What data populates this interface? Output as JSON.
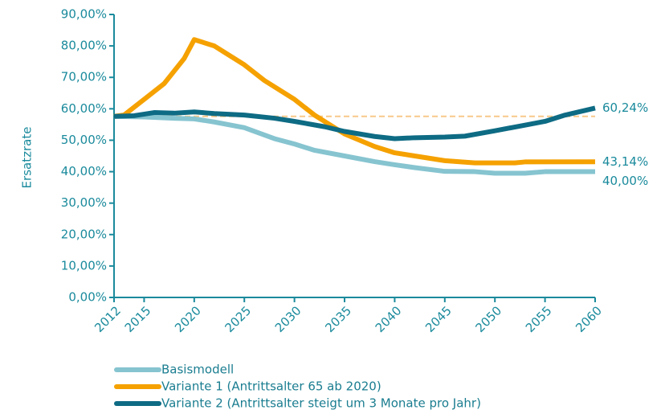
{
  "chart_data": {
    "type": "line",
    "y_label": "Ersatzrate",
    "xlim": [
      2012,
      2060
    ],
    "xticks": [
      2012,
      2015,
      2020,
      2025,
      2030,
      2035,
      2040,
      2045,
      2050,
      2055,
      2060
    ],
    "ylim": [
      0,
      90
    ],
    "yticks": [
      {
        "value": 0,
        "label": "0,00%"
      },
      {
        "value": 10,
        "label": "10,00%"
      },
      {
        "value": 20,
        "label": "20,00%"
      },
      {
        "value": 30,
        "label": "30,00%"
      },
      {
        "value": 40,
        "label": "40,00%"
      },
      {
        "value": 50,
        "label": "50,00%"
      },
      {
        "value": 60,
        "label": "60,00%"
      },
      {
        "value": 70,
        "label": "70,00%"
      },
      {
        "value": 80,
        "label": "80,00%"
      },
      {
        "value": 90,
        "label": "90,00%"
      }
    ],
    "reference_line": {
      "value": 57.6,
      "color": "#f8c98a"
    },
    "series": [
      {
        "name": "Basismodell",
        "color": "#86c4d0",
        "x": [
          2012,
          2015,
          2018,
          2020,
          2022,
          2025,
          2028,
          2030,
          2032,
          2035,
          2038,
          2040,
          2042,
          2045,
          2048,
          2050,
          2053,
          2055,
          2060
        ],
        "values": [
          57.6,
          57.4,
          57,
          56.8,
          55.8,
          54,
          50.5,
          48.8,
          46.8,
          45,
          43.2,
          42.2,
          41.3,
          40.1,
          40,
          39.5,
          39.5,
          40,
          40.0
        ],
        "value_labels": [
          null,
          null,
          null,
          null,
          null,
          null,
          null,
          null,
          null,
          null,
          null,
          null,
          null,
          null,
          null,
          null,
          null,
          null,
          "40,00%"
        ]
      },
      {
        "name": "Variante 1 (Antrittsalter 65 ab 2020)",
        "color": "#f5a100",
        "x": [
          2012,
          2013,
          2015,
          2017,
          2019,
          2020,
          2022,
          2023,
          2025,
          2027,
          2030,
          2032,
          2035,
          2038,
          2040,
          2042,
          2045,
          2048,
          2052,
          2053,
          2060
        ],
        "values": [
          57.6,
          58,
          63,
          68,
          76,
          82,
          80,
          78,
          74,
          69,
          63,
          58,
          52,
          48,
          46,
          45,
          43.5,
          42.8,
          42.8,
          43.1,
          43.14
        ],
        "value_labels": [
          null,
          null,
          null,
          null,
          null,
          null,
          null,
          null,
          null,
          null,
          null,
          null,
          null,
          null,
          null,
          null,
          null,
          null,
          null,
          null,
          "43,14%"
        ]
      },
      {
        "name": "Variante 2 (Antrittsalter steigt um 3 Monate pro Jahr)",
        "color": "#0e6b84",
        "x": [
          2012,
          2014,
          2016,
          2018,
          2020,
          2022,
          2025,
          2028,
          2030,
          2033,
          2035,
          2038,
          2040,
          2042,
          2045,
          2047,
          2050,
          2053,
          2055,
          2057,
          2060
        ],
        "values": [
          57.6,
          57.8,
          58.8,
          58.6,
          59,
          58.5,
          58,
          57,
          56,
          54.3,
          52.8,
          51.2,
          50.5,
          50.8,
          51,
          51.3,
          53,
          54.8,
          56,
          58,
          60.24
        ],
        "value_labels": [
          null,
          null,
          null,
          null,
          null,
          null,
          null,
          null,
          null,
          null,
          null,
          null,
          null,
          null,
          null,
          null,
          null,
          null,
          null,
          null,
          "60,24%"
        ]
      }
    ]
  }
}
